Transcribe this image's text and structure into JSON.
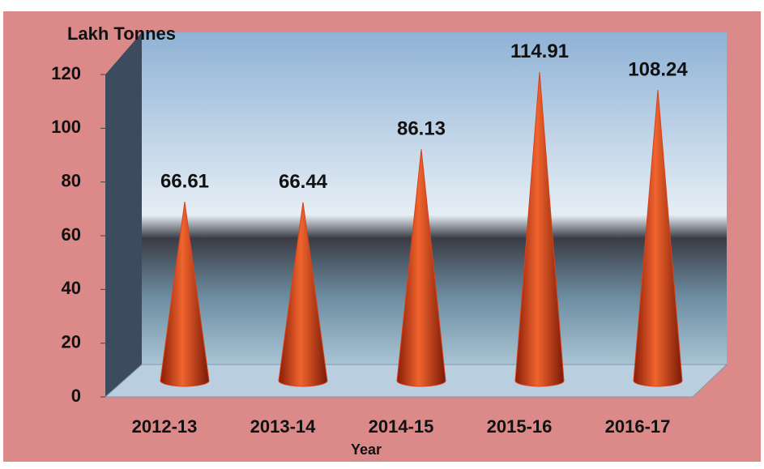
{
  "chart_data": {
    "type": "cone",
    "y_label": "Lakh Tonnes",
    "x_label": "Year",
    "categories": [
      "2012-13",
      "2013-14",
      "2014-15",
      "2015-16",
      "2016-17"
    ],
    "values": [
      66.61,
      66.44,
      86.13,
      114.91,
      108.24
    ],
    "color": "#d8421c",
    "ylim": [
      0,
      120
    ],
    "yticks": [
      0,
      20,
      40,
      60,
      80,
      100,
      120
    ]
  }
}
